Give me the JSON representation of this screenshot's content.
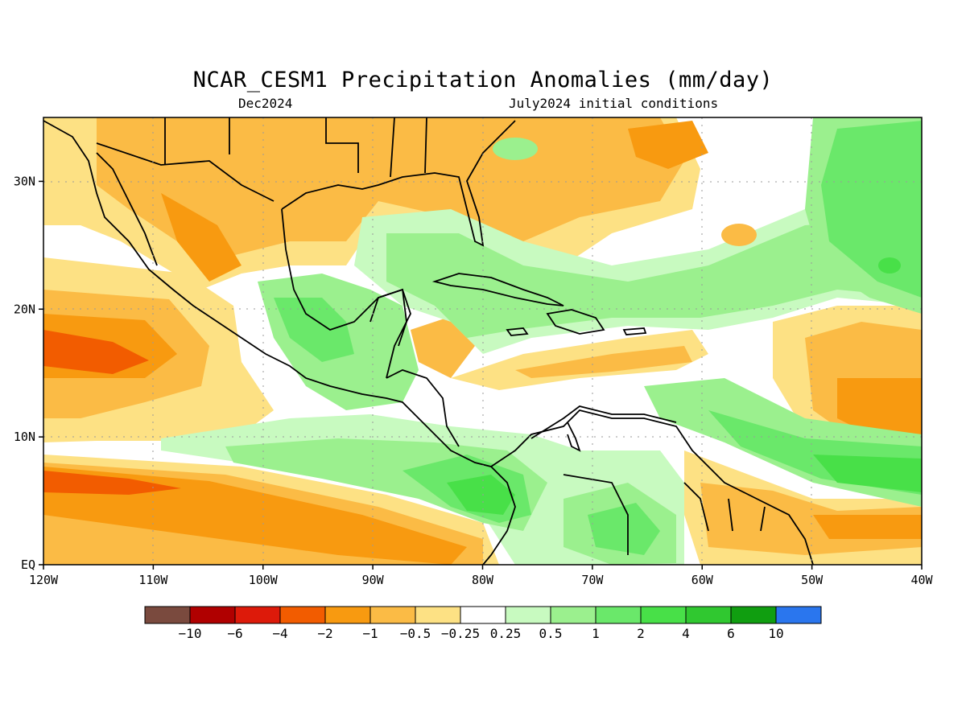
{
  "title": "NCAR_CESM1 Precipitation Anomalies (mm/day)",
  "subtitle_left": "Dec2024",
  "subtitle_right": "July2024 initial conditions",
  "map": {
    "lon_range": [
      -120,
      -40
    ],
    "lat_range": [
      0,
      35
    ],
    "lon_ticks": [
      {
        "value": -120,
        "label": "120W"
      },
      {
        "value": -110,
        "label": "110W"
      },
      {
        "value": -100,
        "label": "100W"
      },
      {
        "value": -90,
        "label": "90W"
      },
      {
        "value": -80,
        "label": "80W"
      },
      {
        "value": -70,
        "label": "70W"
      },
      {
        "value": -60,
        "label": "60W"
      },
      {
        "value": -50,
        "label": "50W"
      },
      {
        "value": -40,
        "label": "40W"
      }
    ],
    "lat_ticks": [
      {
        "value": 0,
        "label": "EQ"
      },
      {
        "value": 10,
        "label": "10N"
      },
      {
        "value": 20,
        "label": "20N"
      },
      {
        "value": 30,
        "label": "30N"
      }
    ],
    "grid": "dotted"
  },
  "colorbar": {
    "colors": [
      "#7a4a3e",
      "#b00000",
      "#dd1a0a",
      "#f25c00",
      "#f89a10",
      "#fbbb45",
      "#fde184",
      "#ffffff",
      "#c8fac0",
      "#9bf08e",
      "#6ae86a",
      "#48e048",
      "#30c830",
      "#109e10",
      "#2a76ee"
    ],
    "labels": [
      "−10",
      "−6",
      "−4",
      "−2",
      "−1",
      "−0.5",
      "−0.25",
      "0.25",
      "0.5",
      "1",
      "2",
      "4",
      "6",
      "10"
    ]
  }
}
